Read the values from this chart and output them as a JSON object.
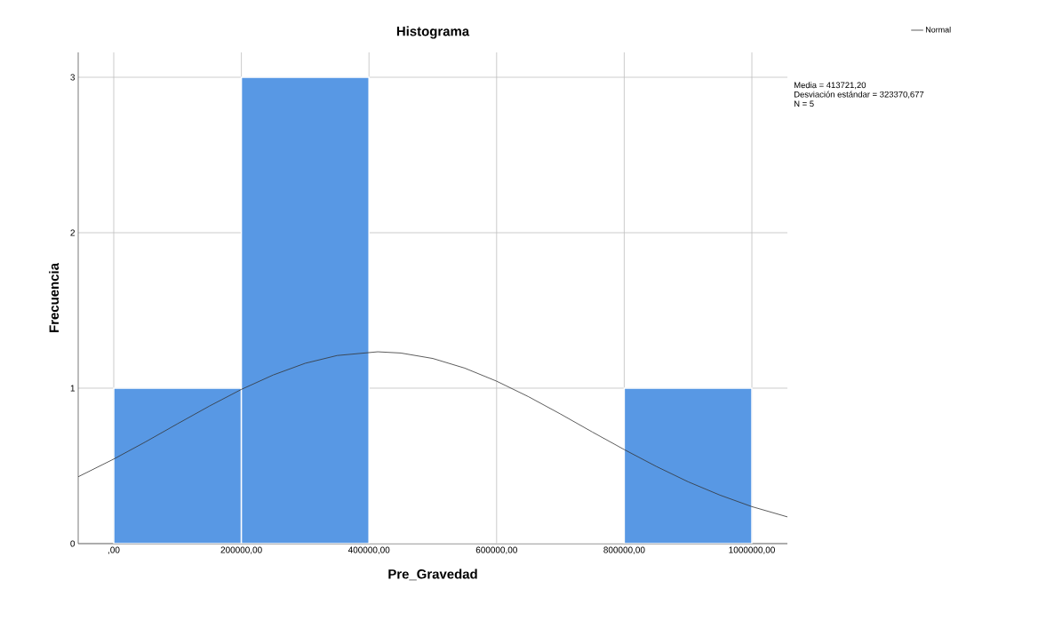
{
  "chart_data": {
    "type": "histogram",
    "title": "Histograma",
    "xlabel": "Pre_Gravedad",
    "ylabel": "Frecuencia",
    "bins": [
      0,
      200000,
      400000,
      600000,
      800000,
      1000000
    ],
    "values": [
      1,
      3,
      0,
      0,
      1
    ],
    "color": "#5898e4",
    "series": [
      {
        "name": "Normal",
        "type": "line",
        "color": "#333333",
        "x": [
          -55700,
          0,
          50000,
          100000,
          150000,
          200000,
          250000,
          300000,
          350000,
          413721,
          450000,
          500000,
          550000,
          600000,
          650000,
          700000,
          750000,
          800000,
          850000,
          900000,
          950000,
          1000000,
          1055700
        ],
        "values": [
          0.43,
          0.544,
          0.655,
          0.771,
          0.885,
          0.992,
          1.085,
          1.16,
          1.21,
          1.234,
          1.226,
          1.191,
          1.129,
          1.045,
          0.945,
          0.834,
          0.718,
          0.605,
          0.497,
          0.398,
          0.312,
          0.238,
          0.172
        ]
      }
    ],
    "xlim": [
      -55700,
      1055700
    ],
    "ylim": [
      0,
      3.16
    ],
    "xticks": [
      {
        "value": 0,
        "label": ",00"
      },
      {
        "value": 200000,
        "label": "200000,00"
      },
      {
        "value": 400000,
        "label": "400000,00"
      },
      {
        "value": 600000,
        "label": "600000,00"
      },
      {
        "value": 800000,
        "label": "800000,00"
      },
      {
        "value": 1000000,
        "label": "1000000,00"
      }
    ],
    "yticks": [
      0,
      1,
      2,
      3
    ],
    "grid": true,
    "legend": "top right",
    "annotations": [
      "Media = 413721,20",
      "Desviación estándar = 323370,677",
      "N = 5"
    ]
  }
}
